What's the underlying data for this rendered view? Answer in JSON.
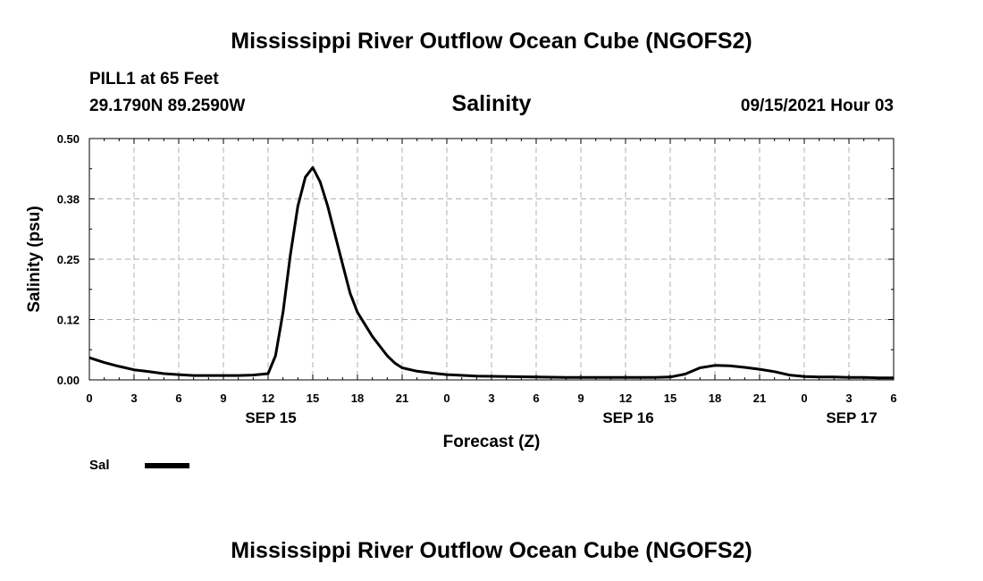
{
  "page": {
    "title_top": "Mississippi River Outflow Ocean Cube (NGOFS2)",
    "title_bottom": "Mississippi River Outflow Ocean Cube (NGOFS2)",
    "station": "PILL1 at 65 Feet",
    "coords": "29.1790N  89.2590W",
    "center_title": "Salinity",
    "datetime": "09/15/2021 Hour 03"
  },
  "chart_data": {
    "type": "line",
    "title": "Salinity",
    "xlabel": "Forecast (Z)",
    "ylabel": "Salinity (psu)",
    "ylim": [
      0,
      0.5
    ],
    "xlim": [
      0,
      54
    ],
    "x_unit": "hours since 2021-09-15 00Z",
    "y_ticks": [
      0.0,
      0.125,
      0.25,
      0.375,
      0.5
    ],
    "y_tick_labels": [
      "0.00",
      "0.12",
      "0.25",
      "0.38",
      "0.50"
    ],
    "x_ticks": [
      0,
      3,
      6,
      9,
      12,
      15,
      18,
      21,
      24,
      27,
      30,
      33,
      36,
      39,
      42,
      45,
      48,
      51,
      54
    ],
    "x_tick_labels": [
      "0",
      "3",
      "6",
      "9",
      "12",
      "15",
      "18",
      "21",
      "0",
      "3",
      "6",
      "9",
      "12",
      "15",
      "18",
      "21",
      "0",
      "3",
      "6"
    ],
    "day_labels": [
      {
        "x": 12,
        "label": "SEP 15"
      },
      {
        "x": 36,
        "label": "SEP 16"
      },
      {
        "x": 51,
        "label": "SEP 17"
      }
    ],
    "grid": true,
    "legend_position": "bottom-left",
    "series": [
      {
        "name": "Sal",
        "color": "#000000",
        "x": [
          0,
          1,
          2,
          3,
          4,
          5,
          6,
          7,
          8,
          9,
          10,
          11,
          12,
          12.5,
          13,
          13.5,
          14,
          14.5,
          15,
          15.5,
          16,
          16.5,
          17,
          17.5,
          18,
          19,
          20,
          20.5,
          21,
          22,
          23,
          24,
          26,
          28,
          30,
          32,
          34,
          36,
          38,
          39,
          40,
          41,
          42,
          43,
          44,
          45,
          46,
          47,
          48,
          49,
          50,
          51,
          52,
          53,
          54
        ],
        "values": [
          0.046,
          0.036,
          0.028,
          0.021,
          0.017,
          0.013,
          0.011,
          0.009,
          0.009,
          0.009,
          0.009,
          0.01,
          0.013,
          0.05,
          0.14,
          0.26,
          0.36,
          0.42,
          0.44,
          0.41,
          0.36,
          0.3,
          0.24,
          0.18,
          0.14,
          0.09,
          0.05,
          0.035,
          0.025,
          0.018,
          0.014,
          0.011,
          0.008,
          0.007,
          0.006,
          0.005,
          0.005,
          0.005,
          0.005,
          0.006,
          0.012,
          0.025,
          0.03,
          0.029,
          0.026,
          0.022,
          0.017,
          0.01,
          0.007,
          0.006,
          0.006,
          0.005,
          0.005,
          0.004,
          0.004
        ]
      }
    ]
  }
}
